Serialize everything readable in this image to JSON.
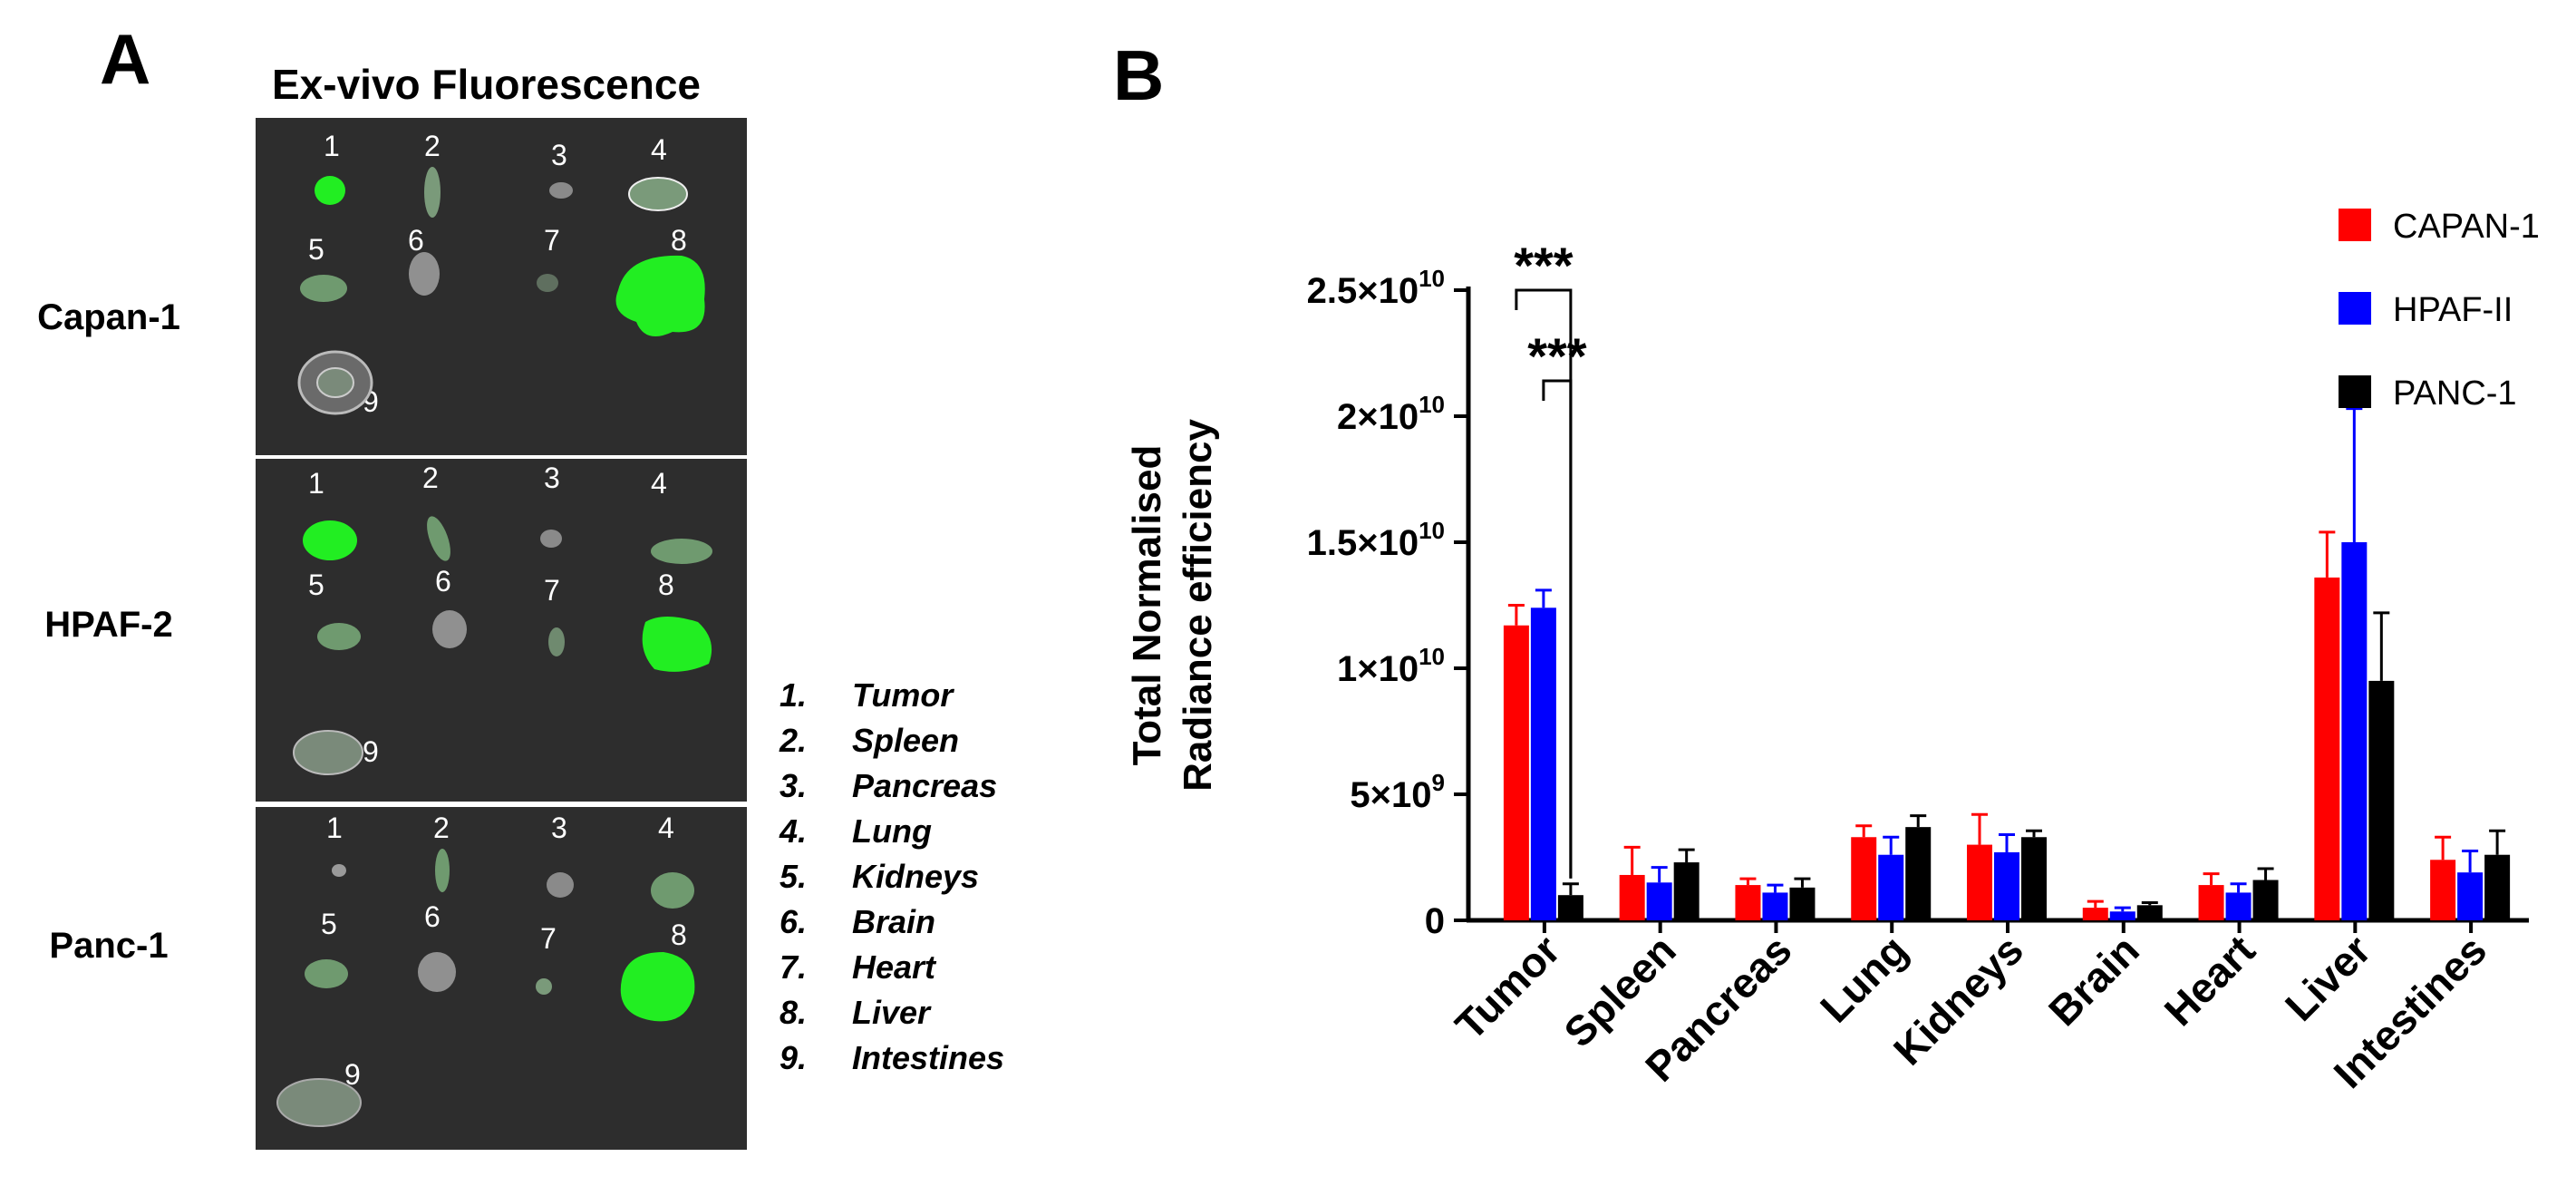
{
  "panels": {
    "a": "A",
    "b": "B"
  },
  "fluorescence": {
    "title": "Ex-vivo Fluorescence",
    "rows": [
      "Capan-1",
      "HPAF-2",
      "Panc-1"
    ],
    "organ_numbers": [
      "1",
      "2",
      "3",
      "4",
      "5",
      "6",
      "7",
      "8",
      "9"
    ],
    "organ_legend": [
      {
        "num": "1.",
        "name": "Tumor"
      },
      {
        "num": "2.",
        "name": "Spleen"
      },
      {
        "num": "3.",
        "name": "Pancreas"
      },
      {
        "num": "4.",
        "name": "Lung"
      },
      {
        "num": "5.",
        "name": "Kidneys"
      },
      {
        "num": "6.",
        "name": "Brain"
      },
      {
        "num": "7.",
        "name": "Heart"
      },
      {
        "num": "8.",
        "name": "Liver"
      },
      {
        "num": "9.",
        "name": "Intestines"
      }
    ],
    "colors": {
      "background": "#2d2d2d",
      "signal": "#22ee22",
      "tissue": "#8a8a8a"
    }
  },
  "chart_data": {
    "type": "bar",
    "ylabel_line1": "Total  Normalised",
    "ylabel_line2": "Radiance efficiency",
    "ylim": [
      0,
      25000000000
    ],
    "yticks": [
      {
        "value": 0,
        "base": "0",
        "exp": ""
      },
      {
        "value": 5000000000,
        "base": "5×10",
        "exp": "9"
      },
      {
        "value": 10000000000,
        "base": "1×10",
        "exp": "10"
      },
      {
        "value": 15000000000,
        "base": "1.5×10",
        "exp": "10"
      },
      {
        "value": 20000000000,
        "base": "2×10",
        "exp": "10"
      },
      {
        "value": 25000000000,
        "base": "2.5×10",
        "exp": "10"
      }
    ],
    "categories": [
      "Tumor",
      "Spleen",
      "Pancreas",
      "Lung",
      "Kidneys",
      "Brain",
      "Heart",
      "Liver",
      "Intestines"
    ],
    "series": [
      {
        "name": "CAPAN-1",
        "color": "#ff0000",
        "values": [
          11700000000,
          1800000000,
          1400000000,
          3300000000,
          3000000000,
          500000000,
          1400000000,
          13600000000,
          2400000000
        ],
        "errors": [
          800000000,
          1100000000,
          250000000,
          450000000,
          1200000000,
          250000000,
          450000000,
          1800000000,
          900000000
        ]
      },
      {
        "name": "HPAF-II",
        "color": "#0000ff",
        "values": [
          12400000000,
          1500000000,
          1100000000,
          2600000000,
          2700000000,
          350000000,
          1100000000,
          15000000000,
          1900000000
        ],
        "errors": [
          700000000,
          600000000,
          300000000,
          700000000,
          700000000,
          150000000,
          350000000,
          5300000000,
          850000000
        ]
      },
      {
        "name": "PANC-1",
        "color": "#000000",
        "values": [
          1000000000,
          2300000000,
          1300000000,
          3700000000,
          3300000000,
          600000000,
          1600000000,
          9500000000,
          2600000000
        ],
        "errors": [
          450000000,
          500000000,
          350000000,
          450000000,
          250000000,
          100000000,
          450000000,
          2700000000,
          950000000
        ]
      }
    ],
    "significance": [
      {
        "category": "Tumor",
        "from_series": 0,
        "to_series": 2,
        "label": "***"
      },
      {
        "category": "Tumor",
        "from_series": 1,
        "to_series": 2,
        "label": "***"
      }
    ],
    "legend_position": "top-right",
    "grid": false
  }
}
